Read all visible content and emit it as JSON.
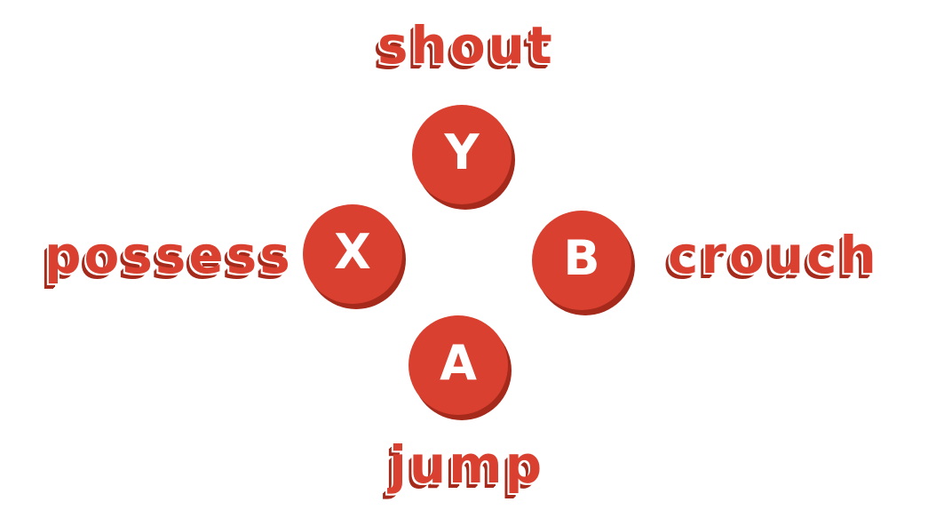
{
  "colors": {
    "button": "#d9402f",
    "button_shadow": "#a52a1c",
    "label": "#d9402f",
    "label_shadow": "#a52a1c",
    "glyph": "#ffffff",
    "background": "#ffffff"
  },
  "buttons": {
    "y": {
      "glyph": "Y",
      "action": "shout"
    },
    "x": {
      "glyph": "X",
      "action": "possess"
    },
    "b": {
      "glyph": "B",
      "action": "crouch"
    },
    "a": {
      "glyph": "A",
      "action": "jump"
    }
  }
}
